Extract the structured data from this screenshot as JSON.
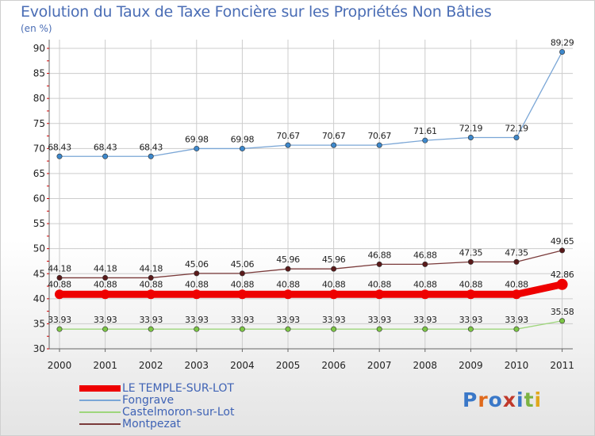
{
  "chart_data": {
    "type": "line",
    "title": "Evolution du Taux de Taxe Foncière sur les Propriétés Non Bâties",
    "ylabel": "(en %)",
    "categories": [
      "2000",
      "2001",
      "2002",
      "2003",
      "2004",
      "2005",
      "2006",
      "2007",
      "2008",
      "2009",
      "2010",
      "2011"
    ],
    "yticks": [
      "30",
      "35",
      "40",
      "45",
      "50",
      "55",
      "60",
      "65",
      "70",
      "75",
      "80",
      "85",
      "90"
    ],
    "ylim": [
      30,
      90
    ],
    "series": [
      {
        "name": "LE TEMPLE-SUR-LOT",
        "color": "#ee0000",
        "emphasis": true,
        "values": [
          40.88,
          40.88,
          40.88,
          40.88,
          40.88,
          40.88,
          40.88,
          40.88,
          40.88,
          40.88,
          40.88,
          42.86
        ],
        "labels": [
          "40.88",
          "40.88",
          "40.88",
          "40.88",
          "40.88",
          "40.88",
          "40.88",
          "40.88",
          "40.88",
          "40.88",
          "40.88",
          "42.86"
        ]
      },
      {
        "name": "Fongrave",
        "color": "#7aa6d6",
        "marker": "#3d88cc",
        "values": [
          68.43,
          68.43,
          68.43,
          69.98,
          69.98,
          70.67,
          70.67,
          70.67,
          71.61,
          72.19,
          72.19,
          89.29
        ],
        "labels": [
          "68.43",
          "68.43",
          "68.43",
          "69.98",
          "69.98",
          "70.67",
          "70.67",
          "70.67",
          "71.61",
          "72.19",
          "72.19",
          "89.29"
        ]
      },
      {
        "name": "Castelmoron-sur-Lot",
        "color": "#9ed67c",
        "marker": "#7cc645",
        "values": [
          33.93,
          33.93,
          33.93,
          33.93,
          33.93,
          33.93,
          33.93,
          33.93,
          33.93,
          33.93,
          33.93,
          35.58
        ],
        "labels": [
          "33.93",
          "33.93",
          "33.93",
          "33.93",
          "33.93",
          "33.93",
          "33.93",
          "33.93",
          "33.93",
          "33.93",
          "33.93",
          "35.58"
        ]
      },
      {
        "name": "Montpezat",
        "color": "#7a3a3a",
        "marker": "#5a1a1a",
        "values": [
          44.18,
          44.18,
          44.18,
          45.06,
          45.06,
          45.96,
          45.96,
          46.88,
          46.88,
          47.35,
          47.35,
          49.65
        ],
        "labels": [
          "44.18",
          "44.18",
          "44.18",
          "45.06",
          "45.06",
          "45.96",
          "45.96",
          "46.88",
          "46.88",
          "47.35",
          "47.35",
          "49.65"
        ]
      }
    ]
  },
  "logo": {
    "text": "Proxiti"
  }
}
